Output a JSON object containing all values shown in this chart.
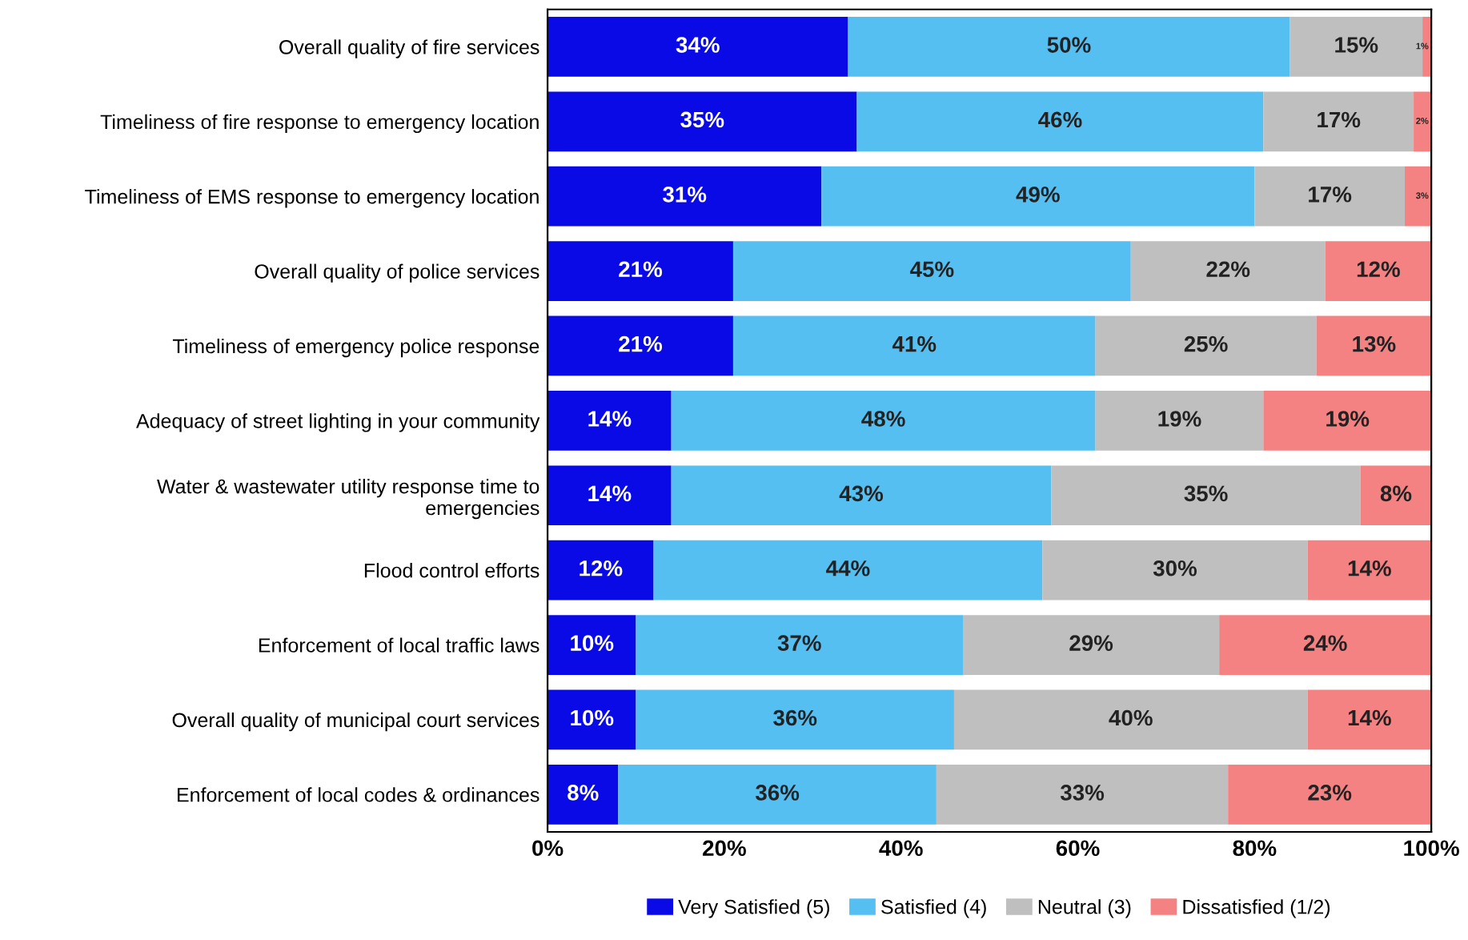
{
  "chart_data": {
    "type": "bar",
    "orientation": "horizontal",
    "stacked": true,
    "legend": "bottom",
    "grid": false,
    "categories": [
      "Overall quality of fire services",
      "Timeliness of fire response to emergency location",
      "Timeliness of EMS response to emergency location",
      "Overall quality of police services",
      "Timeliness of emergency police response",
      "Adequacy of street lighting in your community",
      "Water & wastewater utility response time to\nemergencies",
      "Flood control efforts",
      "Enforcement of local traffic laws",
      "Overall quality of municipal court services",
      "Enforcement of local codes & ordinances"
    ],
    "series": [
      {
        "name": "Very Satisfied (5)",
        "color": "#0a0ae6",
        "values": [
          34,
          35,
          31,
          21,
          21,
          14,
          14,
          12,
          10,
          10,
          8
        ],
        "value_labels": [
          "34%",
          "35%",
          "31%",
          "21%",
          "21%",
          "14%",
          "14%",
          "12%",
          "10%",
          "10%",
          "8%"
        ]
      },
      {
        "name": "Satisfied (4)",
        "color": "#55bff2",
        "values": [
          50,
          46,
          49,
          45,
          41,
          48,
          43,
          44,
          37,
          36,
          36
        ],
        "value_labels": [
          "50%",
          "46%",
          "49%",
          "45%",
          "41%",
          "48%",
          "43%",
          "44%",
          "37%",
          "36%",
          "36%"
        ]
      },
      {
        "name": "Neutral (3)",
        "color": "#bfbfbf",
        "values": [
          15,
          17,
          17,
          22,
          25,
          19,
          35,
          30,
          29,
          40,
          33
        ],
        "value_labels": [
          "15%",
          "17%",
          "17%",
          "22%",
          "25%",
          "19%",
          "35%",
          "30%",
          "29%",
          "40%",
          "33%"
        ]
      },
      {
        "name": "Dissatisfied (1/2)",
        "color": "#f48282",
        "values": [
          1,
          2,
          3,
          12,
          13,
          19,
          8,
          14,
          24,
          14,
          23
        ],
        "value_labels": [
          "1%",
          "2%",
          "3%",
          "12%",
          "13%",
          "19%",
          "8%",
          "14%",
          "24%",
          "14%",
          "23%"
        ]
      }
    ],
    "xlim": [
      0,
      100
    ],
    "xticks": [
      {
        "value": 0,
        "label": "0%"
      },
      {
        "value": 20,
        "label": "20%"
      },
      {
        "value": 40,
        "label": "40%"
      },
      {
        "value": 60,
        "label": "60%"
      },
      {
        "value": 80,
        "label": "80%"
      },
      {
        "value": 100,
        "label": "100%"
      }
    ]
  }
}
